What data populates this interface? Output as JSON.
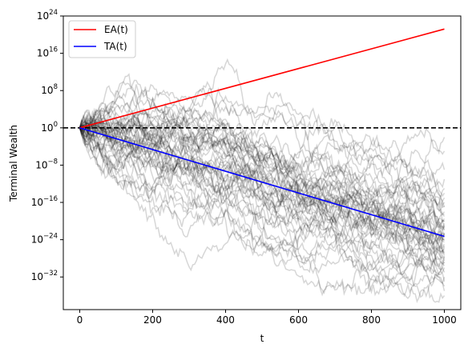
{
  "colors": {
    "ea": "#ff0000",
    "ta": "#0000ff",
    "paths": "#000000",
    "reference": "#000000"
  },
  "chart_data": {
    "type": "line",
    "title": "",
    "xlabel": "t",
    "ylabel": "Terminal Wealth",
    "xlim": [
      -45,
      1045
    ],
    "ylim_log10": [
      -39,
      24
    ],
    "y_scale": "log",
    "grid": false,
    "legend_position": "top-left",
    "x_ticks": [
      {
        "value": 0,
        "label": "0"
      },
      {
        "value": 200,
        "label": "200"
      },
      {
        "value": 400,
        "label": "400"
      },
      {
        "value": 600,
        "label": "600"
      },
      {
        "value": 800,
        "label": "800"
      },
      {
        "value": 1000,
        "label": "1000"
      }
    ],
    "y_ticks": [
      {
        "value": 24,
        "base": "10",
        "exp": "24"
      },
      {
        "value": 16,
        "base": "10",
        "exp": "16"
      },
      {
        "value": 8,
        "base": "10",
        "exp": "8"
      },
      {
        "value": 0,
        "base": "10",
        "exp": "0"
      },
      {
        "value": -8,
        "base": "10",
        "exp": "−8"
      },
      {
        "value": -16,
        "base": "10",
        "exp": "−16"
      },
      {
        "value": -24,
        "base": "10",
        "exp": "−24"
      },
      {
        "value": -32,
        "base": "10",
        "exp": "−32"
      }
    ],
    "series": [
      {
        "name": "EA(t)",
        "color": "#ff0000",
        "x": [
          0,
          1000
        ],
        "y_log10": [
          0,
          21.2
        ]
      },
      {
        "name": "TA(t)",
        "color": "#0000ff",
        "x": [
          0,
          1000
        ],
        "y_log10": [
          0,
          -23.3
        ]
      }
    ],
    "reference_line": {
      "y_log10": 0,
      "style": "dashed",
      "color": "#000000"
    },
    "simulated_paths": {
      "count": 50,
      "steps": 1000,
      "color": "#000000",
      "opacity": 0.16,
      "start_log10": 0,
      "endpoints_log10": [
        -2,
        -5,
        -9,
        -11,
        -13,
        -14,
        -15,
        -16,
        -17,
        -18,
        -19,
        -19.5,
        -20,
        -20.5,
        -21,
        -21.5,
        -22,
        -22.5,
        -23,
        -23.5,
        -24,
        -24.5,
        -25,
        -25.5,
        -26,
        -26.5,
        -27,
        -27.5,
        -28,
        -28.5,
        -29,
        -30,
        -31,
        -32,
        -33,
        -34,
        -35,
        -36,
        -21.8,
        -24.2,
        -26.8,
        -18.6,
        -22.7,
        -25.3,
        -20.1,
        -23.8,
        -27.4,
        -16.8,
        -28.9,
        -29.6
      ]
    }
  }
}
